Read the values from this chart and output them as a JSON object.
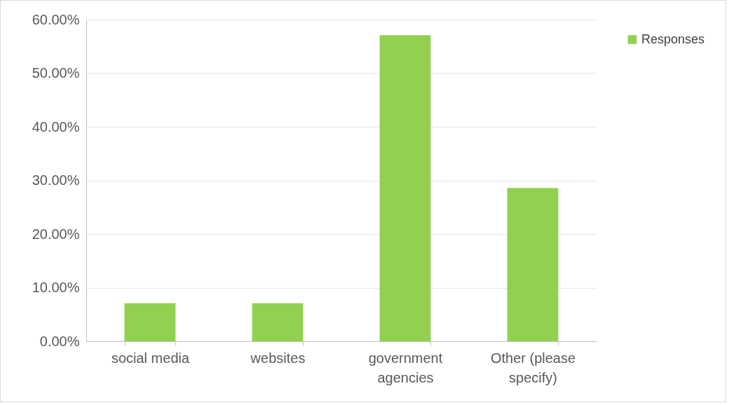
{
  "chart_data": {
    "type": "bar",
    "categories": [
      "social media",
      "websites",
      "government agencies",
      "Other (please specify)"
    ],
    "series": [
      {
        "name": "Responses",
        "color": "#92d050",
        "values": [
          7.1,
          7.1,
          57.1,
          28.6
        ]
      }
    ],
    "ylim": [
      0,
      60
    ],
    "yticks": [
      {
        "value": 0,
        "label": "0.00%"
      },
      {
        "value": 10,
        "label": "10.00%"
      },
      {
        "value": 20,
        "label": "20.00%"
      },
      {
        "value": 30,
        "label": "30.00%"
      },
      {
        "value": 40,
        "label": "40.00%"
      },
      {
        "value": 50,
        "label": "50.00%"
      },
      {
        "value": 60,
        "label": "60.00%"
      }
    ],
    "grid": "y",
    "legend": "right"
  }
}
